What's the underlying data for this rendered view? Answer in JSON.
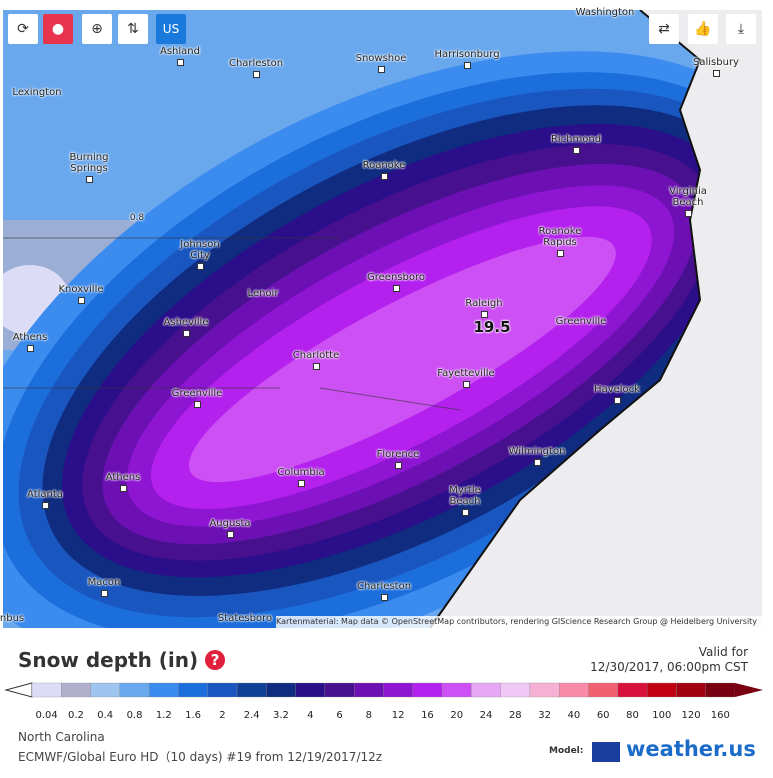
{
  "toolbar": {
    "region": "US"
  },
  "map": {
    "cities": [
      "Washington",
      "Ashland",
      "Charleston",
      "Harrisonburg",
      "Snowshoe",
      "Salisbury",
      "Lexington",
      "Richmond",
      "Burning Springs",
      "Roanoke",
      "Virginia Beach",
      "Johnson City",
      "Roanoke Rapids",
      "Greensboro",
      "Knoxville",
      "Lenoir",
      "Raleigh",
      "Asheville",
      "Greenville",
      "Athens",
      "Charlotte",
      "Fayetteville",
      "Havelock",
      "Greenville",
      "Wilmington",
      "Florence",
      "Athens",
      "Columbia",
      "Atlanta",
      "Myrtle Beach",
      "Augusta",
      "Macon",
      "Charleston",
      "Statesboro",
      "nbus"
    ],
    "annotations": [
      "19.5",
      "0.8"
    ],
    "attribution": "Kartenmaterial: Map data © OpenStreetMap contributors, rendering GIScience Research Group @ Heidelberg University"
  },
  "header": {
    "title": "Snow depth (in)",
    "valid_label": "Valid for",
    "valid_time": "12/30/2017, 06:00pm CST"
  },
  "legend": {
    "stops": [
      {
        "value": 0.04,
        "color": "#dcdcf6"
      },
      {
        "value": 0.2,
        "color": "#b0b0cc"
      },
      {
        "value": 0.4,
        "color": "#9ec4f0"
      },
      {
        "value": 0.8,
        "color": "#6aa8ee"
      },
      {
        "value": 1.2,
        "color": "#3c8cf0"
      },
      {
        "value": 1.6,
        "color": "#1c6edc"
      },
      {
        "value": 2,
        "color": "#1a56c0"
      },
      {
        "value": 2.4,
        "color": "#0f4296"
      },
      {
        "value": 3.2,
        "color": "#0f2c80"
      },
      {
        "value": 4,
        "color": "#2a0e8a"
      },
      {
        "value": 6,
        "color": "#46108e"
      },
      {
        "value": 8,
        "color": "#6c10b4"
      },
      {
        "value": 12,
        "color": "#8e16d2"
      },
      {
        "value": 16,
        "color": "#b420ee"
      },
      {
        "value": 20,
        "color": "#cc50f4"
      },
      {
        "value": 24,
        "color": "#e6a6f4"
      },
      {
        "value": 28,
        "color": "#f0c8f6"
      },
      {
        "value": 32,
        "color": "#f6b0d4"
      },
      {
        "value": 40,
        "color": "#f88aa8"
      },
      {
        "value": 60,
        "color": "#f06070"
      },
      {
        "value": 80,
        "color": "#d8103c"
      },
      {
        "value": 100,
        "color": "#c00010"
      },
      {
        "value": 120,
        "color": "#a00012"
      },
      {
        "value": 160,
        "color": "#780010"
      }
    ]
  },
  "footer": {
    "region": "North Carolina",
    "model_run": "ECMWF/Global Euro HD（10 days) #19 from 12/19/2017/12z",
    "model_label": "Model:",
    "brand": "weather.us"
  }
}
